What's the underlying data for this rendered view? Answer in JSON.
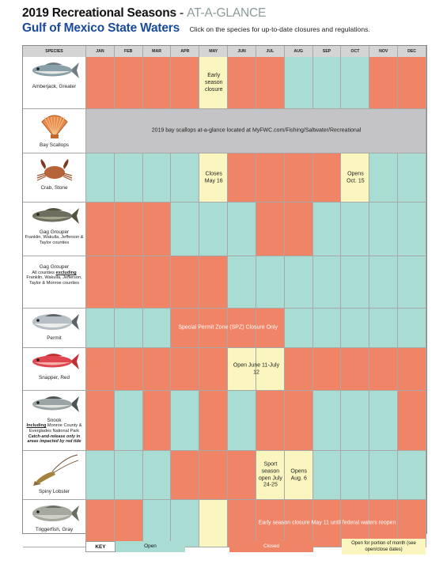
{
  "header": {
    "title": "2019 Recreational Seasons",
    "title_sep": " - ",
    "title_sub": "AT-A-GLANCE",
    "subtitle": "Gulf of Mexico State Waters",
    "instructions": "Click on the species for up-to-date closures and regulations."
  },
  "columns": {
    "species": "SPECIES",
    "months": [
      "JAN",
      "FEB",
      "MAR",
      "APR",
      "MAY",
      "JUN",
      "JUL",
      "AUG",
      "SEP",
      "OCT",
      "NOV",
      "DEC"
    ]
  },
  "colors": {
    "open": "#a9dcd2",
    "closed": "#f08467",
    "partial": "#fbf6c0",
    "gray": "#c4c4c6"
  },
  "rows": [
    {
      "name": "Amberjack, Greater",
      "icon": "amberjack-fish-icon",
      "months": [
        "closed",
        "closed",
        "closed",
        "closed",
        "partial",
        "closed",
        "closed",
        "open",
        "open",
        "open",
        "closed",
        "closed"
      ],
      "notes": [
        {
          "start": 4,
          "span": 1,
          "text": "Early season closure"
        }
      ]
    },
    {
      "name": "Bay Scallops",
      "icon": "scallop-shell-icon",
      "banner": "2019 bay scallops at-a-glance located at MyFWC.com/Fishing/Saltwater/Recreational"
    },
    {
      "name": "Crab, Stone",
      "icon": "crab-icon",
      "months": [
        "open",
        "open",
        "open",
        "open",
        "partial",
        "closed",
        "closed",
        "closed",
        "closed",
        "partial",
        "open",
        "open"
      ],
      "notes": [
        {
          "start": 4,
          "span": 1,
          "text": "Closes May 16"
        },
        {
          "start": 9,
          "span": 1,
          "text": "Opens Oct. 15"
        }
      ]
    },
    {
      "name": "Gag Grouper",
      "icon": "grouper-fish-icon",
      "note": "Franklin, Wakulla, Jefferson & Taylor counties",
      "months": [
        "closed",
        "closed",
        "closed",
        "open",
        "open",
        "open",
        "closed",
        "closed",
        "open",
        "open",
        "open",
        "open"
      ],
      "notes": []
    },
    {
      "name": "Gag Grouper",
      "icon": "",
      "note_parts": [
        "All counties ",
        "excluding",
        " Franklin, Wakulla, Jefferson, Taylor & Monroe counties"
      ],
      "months": [
        "closed",
        "closed",
        "closed",
        "closed",
        "closed",
        "open",
        "open",
        "open",
        "open",
        "open",
        "open",
        "open"
      ],
      "notes": []
    },
    {
      "name": "Permit",
      "icon": "permit-fish-icon",
      "months": [
        "open",
        "open",
        "open",
        "closed",
        "closed",
        "closed",
        "closed",
        "open",
        "open",
        "open",
        "open",
        "open"
      ],
      "notes": [
        {
          "start": 3,
          "span": 4,
          "text": "Special Permit Zone (SPZ) Closure Only",
          "white": true
        }
      ]
    },
    {
      "name": "Snapper, Red",
      "icon": "red-snapper-fish-icon",
      "months": [
        "closed",
        "closed",
        "closed",
        "closed",
        "closed",
        "partial",
        "partial",
        "closed",
        "closed",
        "closed",
        "closed",
        "closed"
      ],
      "notes": [
        {
          "start": 5,
          "span": 2,
          "text": "Open June 11-July 12"
        }
      ]
    },
    {
      "name": "Snook",
      "icon": "snook-fish-icon",
      "note_parts": [
        "Including",
        " Monroe County & Everglades National Park"
      ],
      "note_italic": "Catch-and-release only in areas impacted by red tide",
      "months": [
        "closed",
        "open",
        "closed",
        "open",
        "closed",
        "open",
        "closed",
        "closed",
        "open",
        "open",
        "open",
        "closed"
      ],
      "notes": []
    },
    {
      "name": "Spiny Lobster",
      "icon": "spiny-lobster-icon",
      "months": [
        "open",
        "open",
        "open",
        "closed",
        "closed",
        "closed",
        "partial",
        "partial",
        "open",
        "open",
        "open",
        "open"
      ],
      "notes": [
        {
          "start": 6,
          "span": 1,
          "text": "Sport season open July 24-25"
        },
        {
          "start": 7,
          "span": 1,
          "text": "Opens Aug. 6"
        }
      ]
    },
    {
      "name": "Triggerfish, Gray",
      "icon": "triggerfish-icon",
      "months": [
        "closed",
        "closed",
        "open",
        "open",
        "partial",
        "closed",
        "closed",
        "closed",
        "closed",
        "closed",
        "closed",
        "closed"
      ],
      "notes": [
        {
          "start": 5,
          "span": 7,
          "text": "Early season closure May 11 until federal waters reopen",
          "white": true
        }
      ]
    }
  ],
  "key": {
    "label": "KEY",
    "open": "Open",
    "closed": "Closed",
    "partial": "Open for portion of month (see open/close dates)"
  }
}
